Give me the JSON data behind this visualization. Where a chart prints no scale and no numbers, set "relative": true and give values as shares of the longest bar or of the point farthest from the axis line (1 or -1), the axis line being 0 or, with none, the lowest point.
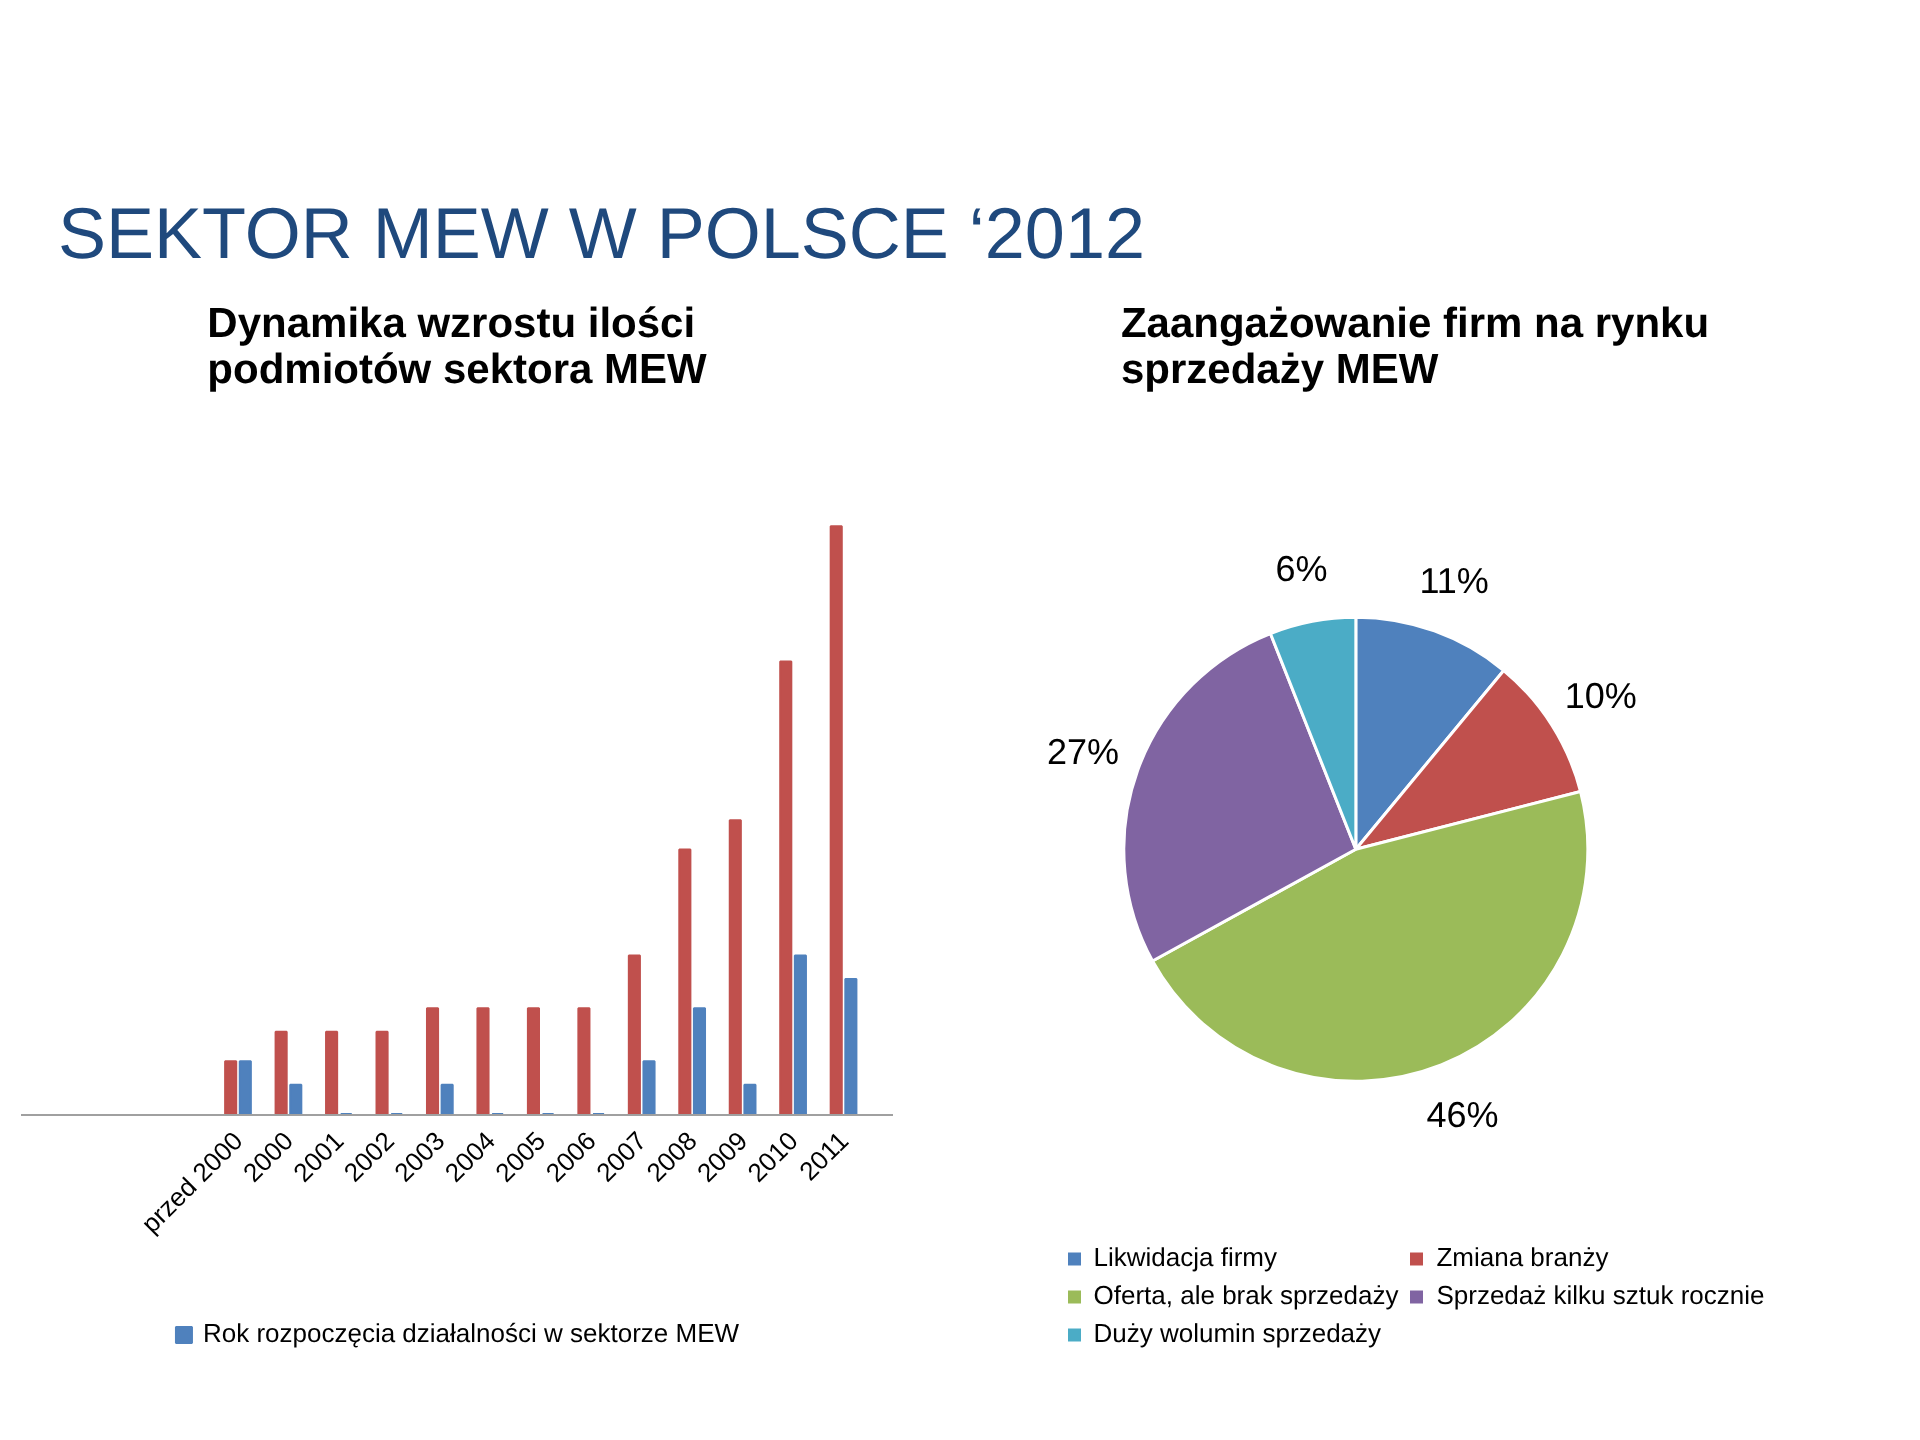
{
  "chart_data": [
    {
      "type": "bar",
      "title": "Dynamika wzrostu ilości podmiotów sektora MEW",
      "annotations": [
        "SEKTOR MEW W POLSCE ‘2012"
      ],
      "categories": [
        "przed 2000",
        "2000",
        "2001",
        "2002",
        "2003",
        "2004",
        "2005",
        "2006",
        "2007",
        "2008",
        "2009",
        "2010",
        "2011"
      ],
      "relative": true,
      "series": [
        {
          "color": "#c0504d",
          "values": [
            0.09,
            0.14,
            0.14,
            0.14,
            0.18,
            0.18,
            0.18,
            0.18,
            0.27,
            0.45,
            0.5,
            0.77,
            1
          ]
        },
        {
          "name": "Rok rozpoczęcia działalności w sektorze MEW",
          "color": "#4f81bd",
          "values": [
            0.09,
            0.05,
            0,
            0,
            0.05,
            0,
            0,
            0,
            0.09,
            0.18,
            0.05,
            0.27,
            0.23
          ]
        }
      ],
      "legend": "bottom"
    },
    {
      "type": "pie",
      "title": "Zaangażowanie firm na rynku sprzedaży MEW",
      "categories": [
        "Likwidacja firmy",
        "Zmiana branży",
        "Oferta, ale brak sprzedaży",
        "Sprzedaż kilku sztuk rocznie",
        "Duży wolumin sprzedaży"
      ],
      "values": [
        11,
        10,
        46,
        27,
        6
      ],
      "colors": [
        "#4f81bd",
        "#c0504d",
        "#9bbb59",
        "#8064a2",
        "#4bacc6"
      ],
      "value_labels": [
        "11%",
        "10%",
        "46%",
        "27%",
        "6%"
      ],
      "legend": "bottom"
    }
  ]
}
